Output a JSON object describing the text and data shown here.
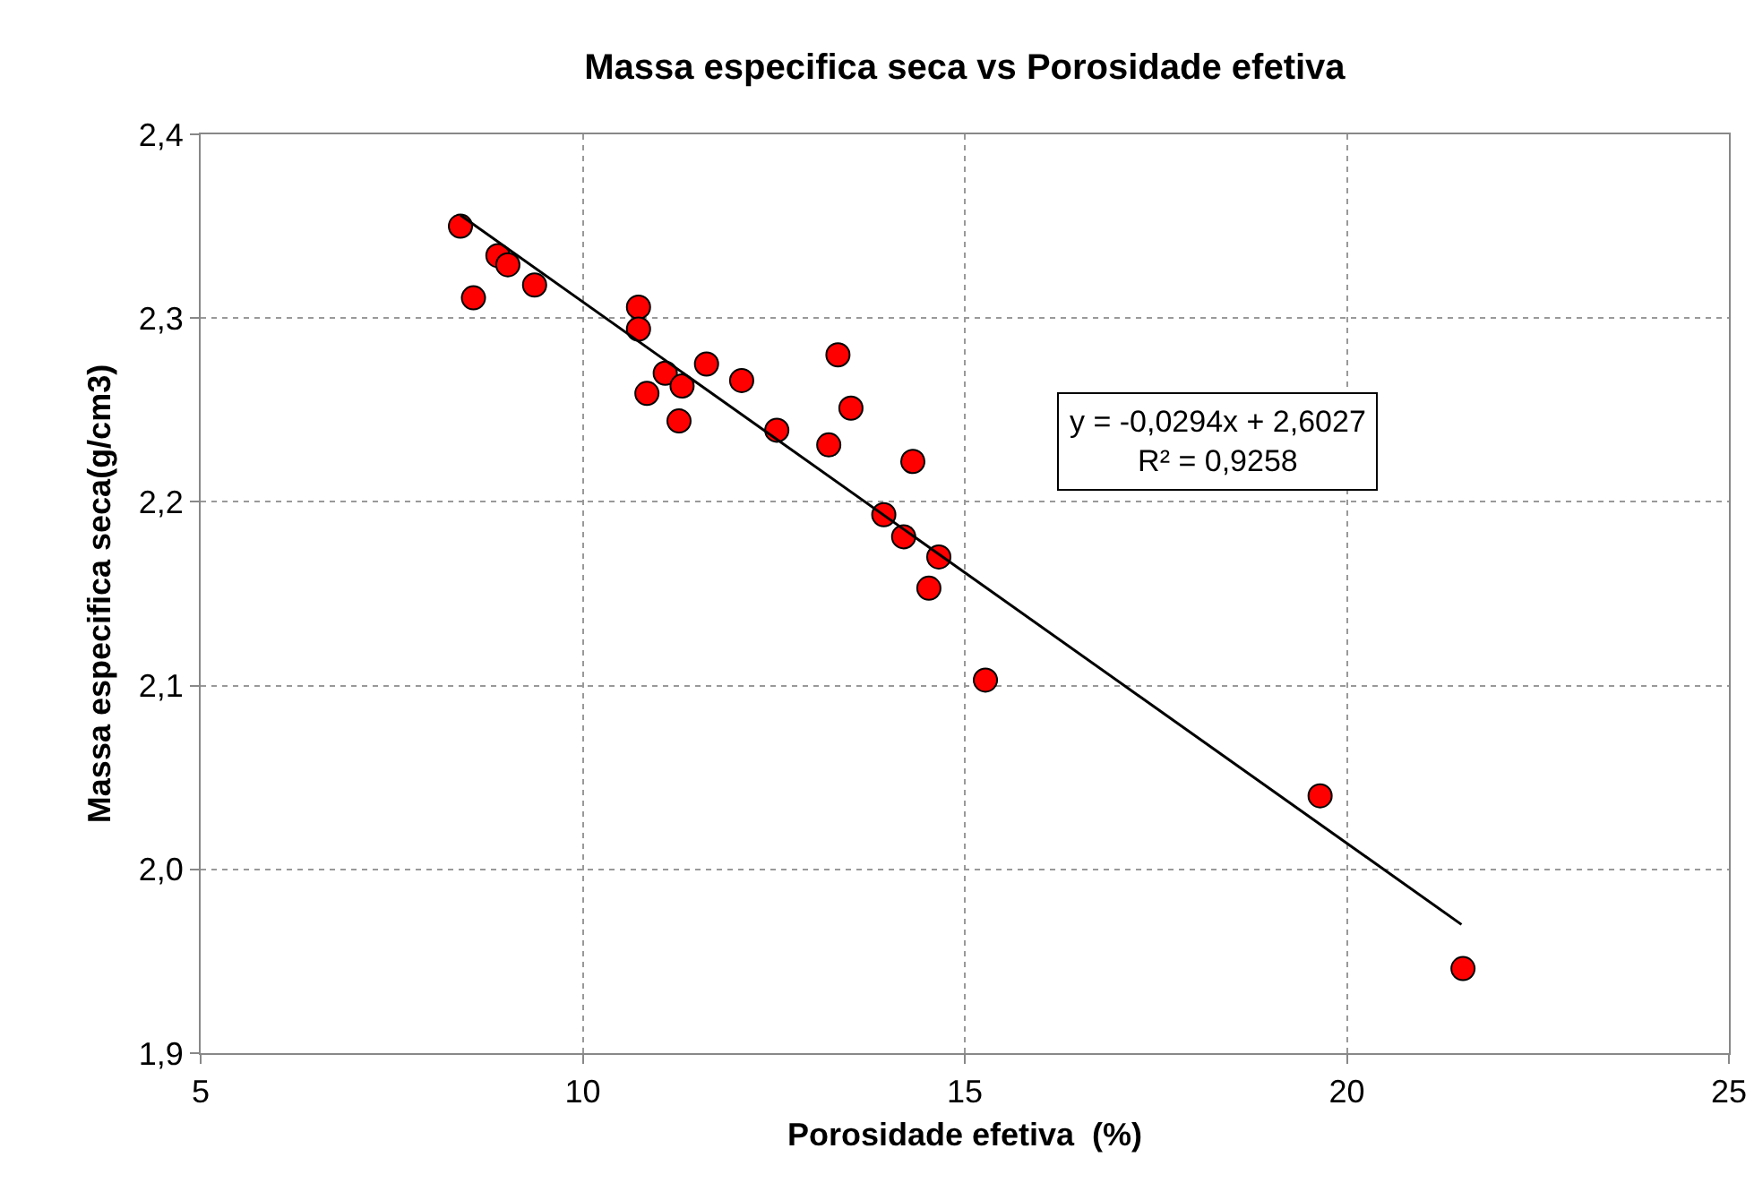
{
  "chart_data": {
    "type": "scatter",
    "title": "Massa especifica seca vs Porosidade efetiva",
    "xlabel": "Porosidade efetiva  (%)",
    "ylabel": "Massa especifica seca(g/cm3)",
    "xlim": [
      5,
      25
    ],
    "xticks": [
      5,
      10,
      15,
      20,
      25
    ],
    "ylim": [
      1.9,
      2.4
    ],
    "yticks": [
      {
        "value": 1.9,
        "label": "1,9"
      },
      {
        "value": 2.0,
        "label": "2,0"
      },
      {
        "value": 2.1,
        "label": "2,1"
      },
      {
        "value": 2.2,
        "label": "2,2"
      },
      {
        "value": 2.3,
        "label": "2,3"
      },
      {
        "value": 2.4,
        "label": "2,4"
      }
    ],
    "grid": true,
    "marker": "circle",
    "annotations": [
      "y = -0,0294x + 2,6027\nR² = 0,9258"
    ],
    "series": [
      {
        "type": "scatter",
        "color": "#ff0000",
        "x": [
          8.4,
          8.57,
          8.89,
          9.02,
          9.37,
          10.73,
          10.73,
          10.84,
          11.08,
          11.3,
          11.26,
          11.62,
          12.08,
          12.54,
          13.22,
          13.34,
          13.51,
          14.32,
          13.94,
          14.2,
          14.66,
          14.53,
          15.27,
          19.65,
          21.52
        ],
        "values": [
          2.35,
          2.311,
          2.334,
          2.329,
          2.318,
          2.306,
          2.294,
          2.259,
          2.27,
          2.263,
          2.244,
          2.275,
          2.266,
          2.239,
          2.231,
          2.28,
          2.251,
          2.222,
          2.193,
          2.181,
          2.17,
          2.153,
          2.103,
          2.04,
          1.946
        ]
      },
      {
        "type": "line",
        "color": "#000000",
        "line_style": "solid",
        "marker": "none",
        "x": [
          8.4,
          21.5
        ],
        "values": [
          2.356,
          1.97
        ]
      }
    ]
  }
}
